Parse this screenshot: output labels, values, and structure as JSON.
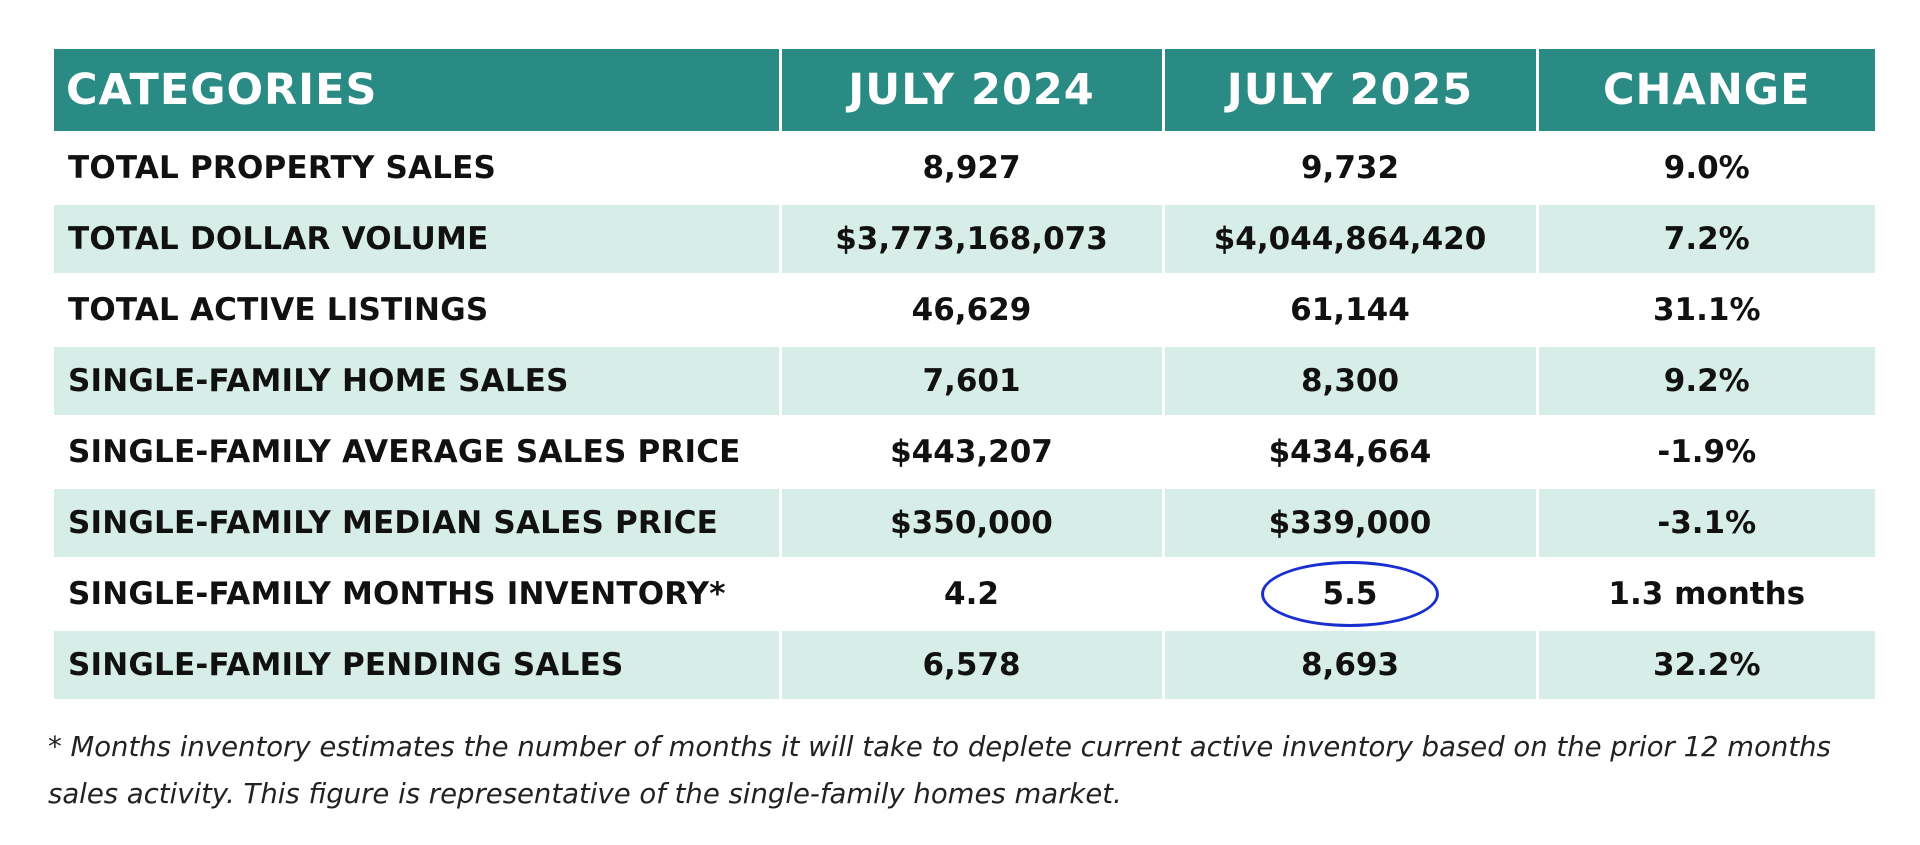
{
  "colors": {
    "header_bg": "#2a8a84",
    "stripe_bg": "#d7eee8",
    "highlight_circle": "#1a2fd0"
  },
  "table": {
    "headers": [
      "CATEGORIES",
      "JULY 2024",
      "JULY 2025",
      "CHANGE"
    ],
    "rows": [
      [
        "TOTAL PROPERTY SALES",
        "8,927",
        "9,732",
        "9.0%"
      ],
      [
        "TOTAL DOLLAR VOLUME",
        "$3,773,168,073",
        "$4,044,864,420",
        "7.2%"
      ],
      [
        "TOTAL ACTIVE LISTINGS",
        "46,629",
        "61,144",
        "31.1%"
      ],
      [
        "SINGLE-FAMILY HOME SALES",
        "7,601",
        "8,300",
        "9.2%"
      ],
      [
        "SINGLE-FAMILY AVERAGE SALES PRICE",
        "$443,207",
        "$434,664",
        "-1.9%"
      ],
      [
        "SINGLE-FAMILY MEDIAN SALES PRICE",
        "$350,000",
        "$339,000",
        "-3.1%"
      ],
      [
        "SINGLE-FAMILY MONTHS INVENTORY*",
        "4.2",
        "5.5",
        "1.3 months"
      ],
      [
        "SINGLE-FAMILY PENDING SALES",
        "6,578",
        "8,693",
        "32.2%"
      ]
    ],
    "highlighted_cell": "5.5"
  },
  "footnote": {
    "line1": "* Months inventory estimates the number of months it will take to deplete current active inventory based on the prior 12 months",
    "line2": "sales activity. This figure is representative of the single-family homes market."
  }
}
